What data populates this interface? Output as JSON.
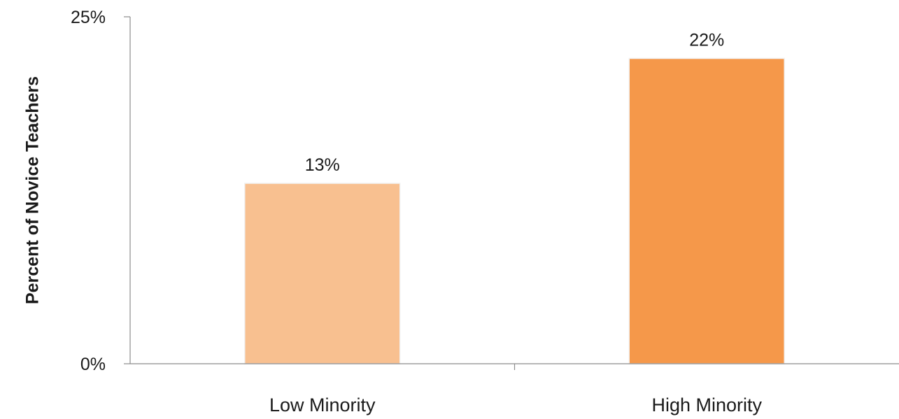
{
  "chart_data": {
    "type": "bar",
    "title": "",
    "xlabel": "",
    "ylabel": "Percent of Novice Teachers",
    "categories": [
      "Low Minority",
      "High Minority"
    ],
    "values": [
      13,
      22
    ],
    "data_labels": [
      "13%",
      "22%"
    ],
    "bar_colors": [
      "#F8C090",
      "#F5984A"
    ],
    "ylim": [
      0,
      25
    ],
    "y_ticks": [
      0,
      25
    ],
    "y_tick_labels": [
      "0%",
      "25%"
    ],
    "grid": false,
    "legend": "none"
  },
  "colors": {
    "axis": "#8c8c8c",
    "text": "#1a1a1a",
    "background": "#ffffff"
  }
}
